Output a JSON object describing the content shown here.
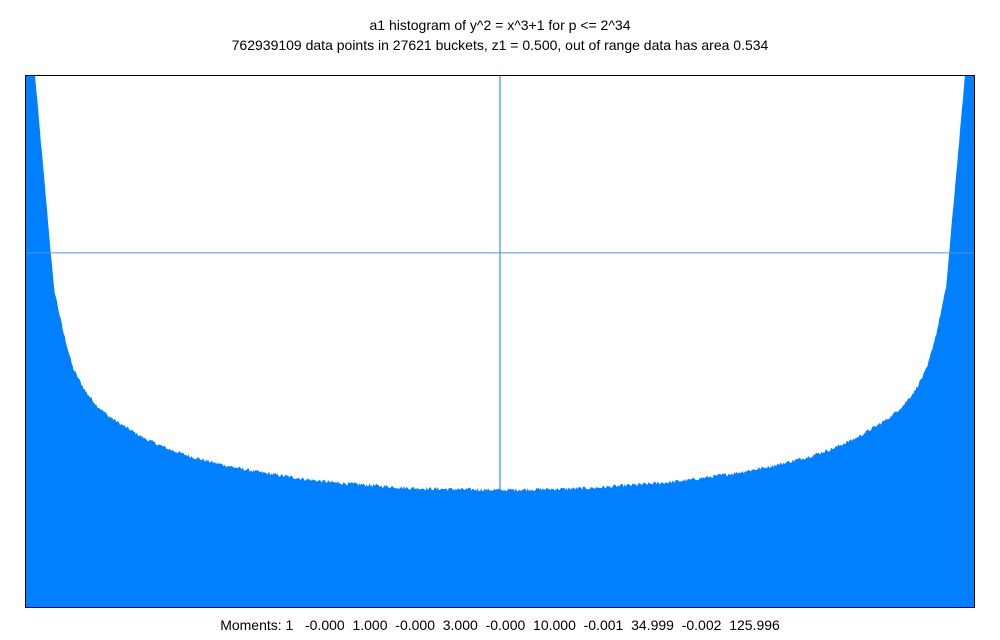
{
  "chart_data": {
    "type": "area",
    "title": "a1 histogram of y^2 = x^3+1 for p <= 2^34",
    "subtitle": "762939109 data points in 27621 buckets, z1 = 0.500, out of range data has area 0.534",
    "xlim": [
      -2,
      2
    ],
    "ylim": [
      0,
      0.6
    ],
    "reference_lines": {
      "x": 0,
      "y": 0.4
    },
    "grid": false,
    "legend": "none",
    "curve_note": "U-shaped density (dense samples)",
    "x": [
      -1.96,
      -1.92,
      -1.88,
      -1.84,
      -1.8,
      -1.75,
      -1.7,
      -1.65,
      -1.6,
      -1.5,
      -1.4,
      -1.3,
      -1.2,
      -1.1,
      -1.0,
      -0.9,
      -0.8,
      -0.7,
      -0.6,
      -0.5,
      -0.4,
      -0.3,
      -0.2,
      -0.1,
      0.0,
      0.1,
      0.2,
      0.3,
      0.4,
      0.5,
      0.6,
      0.7,
      0.8,
      0.9,
      1.0,
      1.1,
      1.2,
      1.3,
      1.4,
      1.5,
      1.6,
      1.65,
      1.7,
      1.75,
      1.8,
      1.84,
      1.88,
      1.92,
      1.96
    ],
    "y": [
      0.6,
      0.48,
      0.36,
      0.31,
      0.27,
      0.245,
      0.228,
      0.216,
      0.207,
      0.191,
      0.179,
      0.17,
      0.163,
      0.157,
      0.152,
      0.148,
      0.144,
      0.141,
      0.139,
      0.137,
      0.135,
      0.134,
      0.1335,
      0.133,
      0.1325,
      0.133,
      0.1335,
      0.134,
      0.135,
      0.137,
      0.139,
      0.141,
      0.144,
      0.148,
      0.152,
      0.157,
      0.163,
      0.17,
      0.179,
      0.191,
      0.207,
      0.216,
      0.228,
      0.245,
      0.27,
      0.31,
      0.36,
      0.48,
      0.6
    ],
    "fill_color": "#0080ff",
    "footer": "Moments: 1   -0.000  1.000  -0.000  3.000  -0.000  10.000  -0.001  34.999  -0.002  125.996"
  }
}
